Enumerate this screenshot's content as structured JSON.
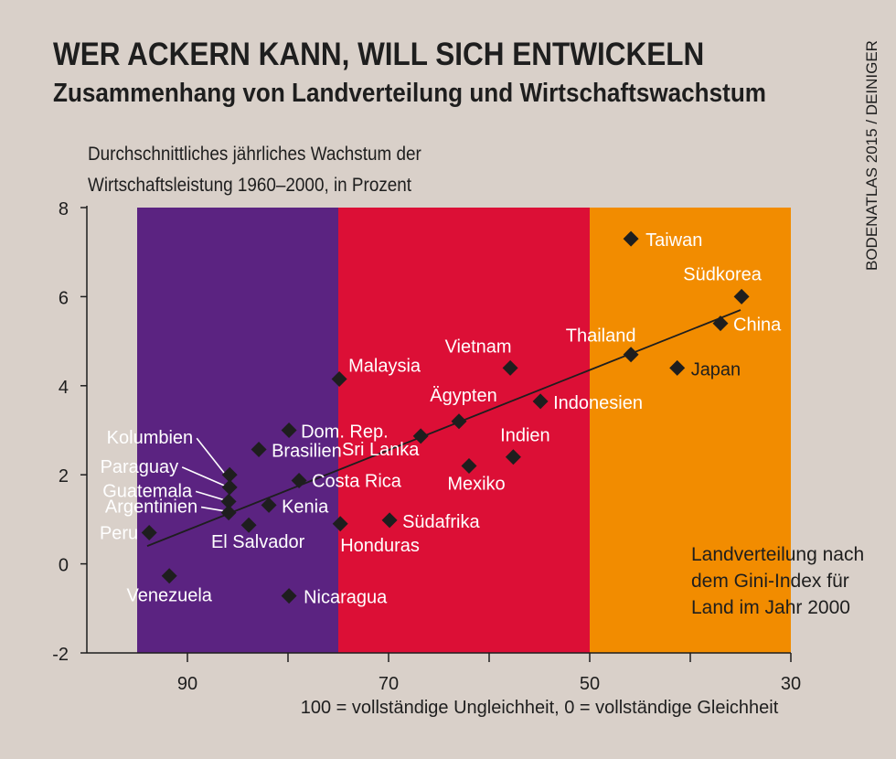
{
  "header": {
    "title": "WER ACKERN KANN, WILL SICH ENTWICKELN",
    "subtitle": "Zusammenhang von Landverteilung und Wirtschaftswachstum",
    "source": "BODENATLAS 2015 / DEINIGER"
  },
  "colors": {
    "background": "#d9d0c9",
    "band_purple": "#5b2381",
    "band_red": "#dc0f36",
    "band_orange": "#f28c00",
    "marker": "#1e1e1e"
  },
  "chart_data": {
    "type": "scatter",
    "ylabel_lines": [
      "Durchschnittliches jährliches Wachstum der",
      "Wirtschaftsleistung 1960–2000, in Prozent"
    ],
    "xlabel": "100 = vollständige Ungleichheit, 0 = vollständige Gleichheit",
    "legend_text_lines": [
      "Landverteilung nach",
      "dem Gini-Index für",
      "Land im Jahr 2000"
    ],
    "xlim": [
      100,
      30
    ],
    "ylim": [
      -2,
      8
    ],
    "x_ticks": [
      90,
      70,
      50,
      30
    ],
    "y_ticks": [
      -2,
      0,
      2,
      4,
      6,
      8
    ],
    "x_reversed": true,
    "grid": false,
    "bands": [
      {
        "from": 95,
        "to": 75,
        "color": "#5b2381"
      },
      {
        "from": 75,
        "to": 50,
        "color": "#dc0f36"
      },
      {
        "from": 50,
        "to": 30,
        "color": "#f28c00"
      }
    ],
    "trendline": {
      "from": [
        94,
        0.4
      ],
      "to": [
        35,
        5.7
      ]
    },
    "points": [
      {
        "label": "Taiwan",
        "x": 45.9,
        "y": 7.3
      },
      {
        "label": "Südkorea",
        "x": 34.9,
        "y": 6.0
      },
      {
        "label": "China",
        "x": 37.0,
        "y": 5.4
      },
      {
        "label": "Thailand",
        "x": 45.9,
        "y": 4.7
      },
      {
        "label": "Japan",
        "x": 41.3,
        "y": 4.4
      },
      {
        "label": "Vietnam",
        "x": 57.9,
        "y": 4.4
      },
      {
        "label": "Indonesien",
        "x": 54.9,
        "y": 3.65
      },
      {
        "label": "Malaysia",
        "x": 74.9,
        "y": 4.15
      },
      {
        "label": "Ägypten",
        "x": 63.0,
        "y": 3.2
      },
      {
        "label": "Indien",
        "x": 57.6,
        "y": 2.4
      },
      {
        "label": "Sri Lanka",
        "x": 66.8,
        "y": 2.87
      },
      {
        "label": "Mexiko",
        "x": 62.0,
        "y": 2.2
      },
      {
        "label": "Dom. Rep.",
        "x": 79.9,
        "y": 3.0
      },
      {
        "label": "Brasilien",
        "x": 82.9,
        "y": 2.57
      },
      {
        "label": "Costa Rica",
        "x": 78.9,
        "y": 1.87
      },
      {
        "label": "Kenia",
        "x": 81.9,
        "y": 1.32
      },
      {
        "label": "El Salvador",
        "x": 83.9,
        "y": 0.87
      },
      {
        "label": "Honduras",
        "x": 74.8,
        "y": 0.9
      },
      {
        "label": "Südafrika",
        "x": 69.9,
        "y": 0.98
      },
      {
        "label": "Kolumbien",
        "x": 85.8,
        "y": 2.0
      },
      {
        "label": "Paraguay",
        "x": 85.8,
        "y": 1.72
      },
      {
        "label": "Guatemala",
        "x": 85.9,
        "y": 1.4
      },
      {
        "label": "Argentinien",
        "x": 85.9,
        "y": 1.15
      },
      {
        "label": "Peru",
        "x": 93.8,
        "y": 0.7
      },
      {
        "label": "Venezuela",
        "x": 91.8,
        "y": -0.27
      },
      {
        "label": "Nicaragua",
        "x": 79.9,
        "y": -0.72
      }
    ]
  }
}
